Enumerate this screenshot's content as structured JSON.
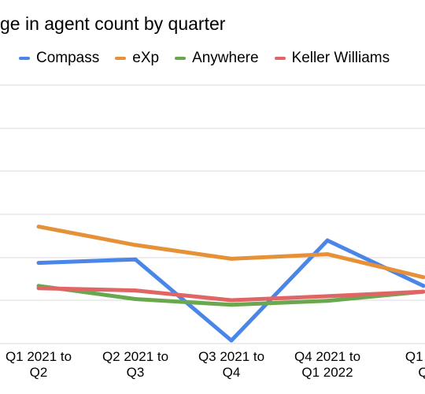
{
  "chart_data": {
    "type": "line",
    "title": "ge in agent count by quarter",
    "xlabel": "",
    "ylabel": "",
    "categories": [
      [
        "Q1 2021 to",
        "Q2"
      ],
      [
        "Q2 2021 to",
        "Q3"
      ],
      [
        "Q3 2021 to",
        "Q4"
      ],
      [
        "Q4 2021 to",
        "Q1 2022"
      ],
      [
        "Q1 20",
        "Q"
      ]
    ],
    "grid": true,
    "legend_position": "top",
    "series": [
      {
        "name": "Compass",
        "color": "#4a86e8",
        "values": [
          6.5,
          7.1,
          -7.0,
          10.4,
          2.5
        ]
      },
      {
        "name": "eXp",
        "color": "#e69138",
        "values": [
          12.8,
          9.6,
          7.2,
          8.0,
          4.0
        ]
      },
      {
        "name": "Anywhere",
        "color": "#6aa84f",
        "values": [
          2.5,
          0.2,
          -0.8,
          -0.1,
          1.5
        ]
      },
      {
        "name": "Keller Williams",
        "color": "#e06666",
        "values": [
          2.1,
          1.7,
          0.0,
          0.7,
          1.5
        ]
      }
    ]
  }
}
